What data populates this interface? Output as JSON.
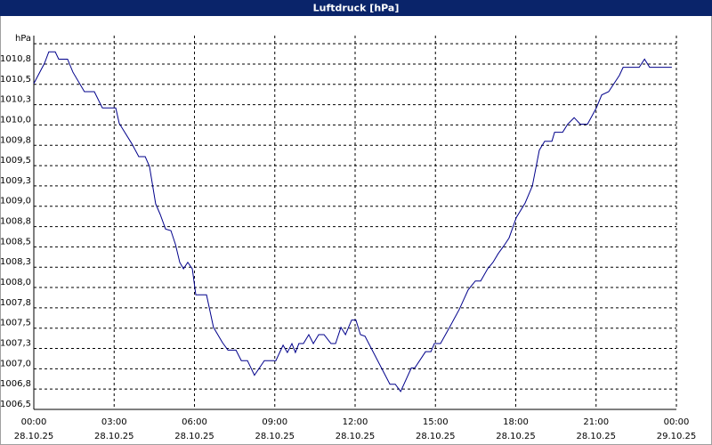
{
  "chart_data": {
    "type": "line",
    "title": "Luftdruck [hPa]",
    "xlim": [
      0,
      24
    ],
    "ylim": [
      1006.5,
      1011.1
    ],
    "grid": true,
    "grid_style": "dashed",
    "xticks": [
      {
        "value": 0,
        "label": "00:00",
        "date": "28.10.25"
      },
      {
        "value": 3,
        "label": "03:00",
        "date": "28.10.25"
      },
      {
        "value": 6,
        "label": "06:00",
        "date": "28.10.25"
      },
      {
        "value": 9,
        "label": "09:00",
        "date": "28.10.25"
      },
      {
        "value": 12,
        "label": "12:00",
        "date": "28.10.25"
      },
      {
        "value": 15,
        "label": "15:00",
        "date": "28.10.25"
      },
      {
        "value": 18,
        "label": "18:00",
        "date": "28.10.25"
      },
      {
        "value": 21,
        "label": "21:00",
        "date": "28.10.25"
      },
      {
        "value": 24,
        "label": "00:00",
        "date": "29.10.25"
      }
    ],
    "yticks": [
      {
        "value": 1006.5,
        "label": "1006,5"
      },
      {
        "value": 1006.75,
        "label": "1006,8"
      },
      {
        "value": 1007.0,
        "label": "1007,0"
      },
      {
        "value": 1007.25,
        "label": "1007,3"
      },
      {
        "value": 1007.5,
        "label": "1007,5"
      },
      {
        "value": 1007.75,
        "label": "1007,8"
      },
      {
        "value": 1008.0,
        "label": "1008,0"
      },
      {
        "value": 1008.25,
        "label": "1008,3"
      },
      {
        "value": 1008.5,
        "label": "1008,5"
      },
      {
        "value": 1008.75,
        "label": "1008,8"
      },
      {
        "value": 1009.0,
        "label": "1009,0"
      },
      {
        "value": 1009.25,
        "label": "1009,3"
      },
      {
        "value": 1009.5,
        "label": "1009,5"
      },
      {
        "value": 1009.75,
        "label": "1009,8"
      },
      {
        "value": 1010.0,
        "label": "1010,0"
      },
      {
        "value": 1010.25,
        "label": "1010,3"
      },
      {
        "value": 1010.5,
        "label": "1010,5"
      },
      {
        "value": 1010.75,
        "label": "1010,8"
      },
      {
        "value": 1011.0,
        "label": "hPa"
      }
    ],
    "x": [
      0,
      0.4,
      0.56,
      0.8,
      0.93,
      1.26,
      1.46,
      1.89,
      2.26,
      2.56,
      3.06,
      3.19,
      3.66,
      3.92,
      4.16,
      4.32,
      4.55,
      4.72,
      4.92,
      5.12,
      5.29,
      5.45,
      5.59,
      5.75,
      5.92,
      6.05,
      6.45,
      6.71,
      7.05,
      7.25,
      7.55,
      7.75,
      7.98,
      8.24,
      8.61,
      9.04,
      9.31,
      9.47,
      9.64,
      9.77,
      9.9,
      10.07,
      10.27,
      10.44,
      10.64,
      10.84,
      11.1,
      11.27,
      11.47,
      11.64,
      11.87,
      12.03,
      12.2,
      12.37,
      13.3,
      13.5,
      13.7,
      14.1,
      14.23,
      14.63,
      14.83,
      14.96,
      15.19,
      15.56,
      15.89,
      16.22,
      16.49,
      16.69,
      16.95,
      17.15,
      17.35,
      17.55,
      17.75,
      18.02,
      18.35,
      18.62,
      18.88,
      19.08,
      19.35,
      19.45,
      19.75,
      19.94,
      20.18,
      20.41,
      20.68,
      21.01,
      21.21,
      21.47,
      21.87,
      22.01,
      22.61,
      22.81,
      23.0,
      23.83
    ],
    "series": [
      {
        "color": "#00008b",
        "values": [
          1010.51,
          1010.76,
          1010.9,
          1010.9,
          1010.81,
          1010.81,
          1010.65,
          1010.41,
          1010.41,
          1010.21,
          1010.21,
          1010.02,
          1009.77,
          1009.61,
          1009.61,
          1009.49,
          1009.03,
          1008.9,
          1008.72,
          1008.7,
          1008.53,
          1008.31,
          1008.23,
          1008.31,
          1008.23,
          1007.91,
          1007.91,
          1007.51,
          1007.32,
          1007.23,
          1007.23,
          1007.1,
          1007.1,
          1006.92,
          1007.1,
          1007.1,
          1007.29,
          1007.2,
          1007.31,
          1007.2,
          1007.31,
          1007.31,
          1007.42,
          1007.31,
          1007.42,
          1007.42,
          1007.31,
          1007.31,
          1007.51,
          1007.42,
          1007.6,
          1007.6,
          1007.42,
          1007.4,
          1006.81,
          1006.81,
          1006.72,
          1007.01,
          1007.01,
          1007.21,
          1007.21,
          1007.31,
          1007.31,
          1007.53,
          1007.73,
          1007.97,
          1008.08,
          1008.08,
          1008.23,
          1008.31,
          1008.42,
          1008.51,
          1008.61,
          1008.86,
          1009.04,
          1009.25,
          1009.69,
          1009.8,
          1009.8,
          1009.91,
          1009.91,
          1010.01,
          1010.09,
          1010.01,
          1010.01,
          1010.21,
          1010.37,
          1010.41,
          1010.61,
          1010.71,
          1010.71,
          1010.81,
          1010.71,
          1010.71
        ]
      }
    ]
  }
}
